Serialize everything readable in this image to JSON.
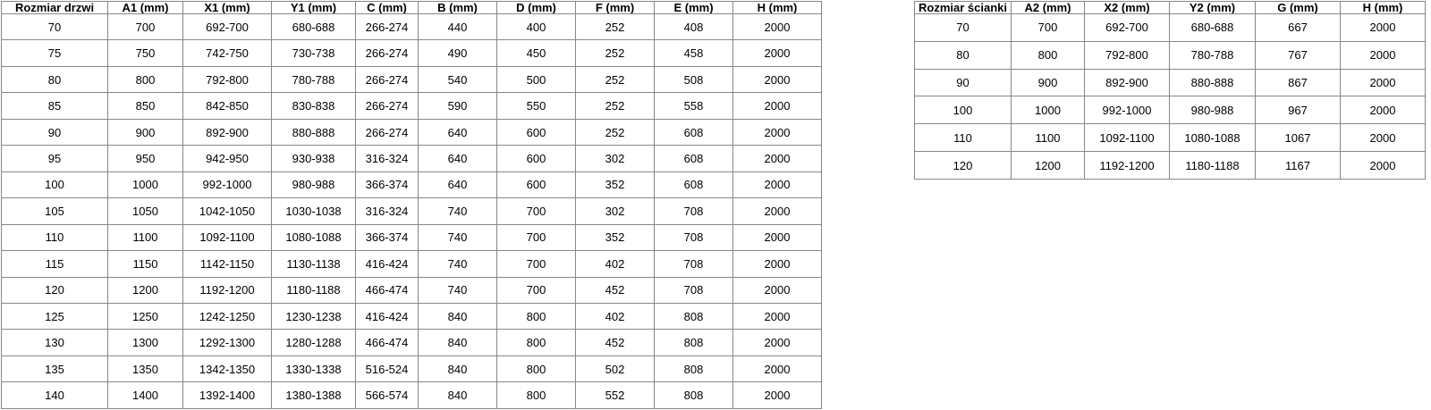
{
  "door_table": {
    "headers": [
      "Rozmiar drzwi",
      "A1 (mm)",
      "X1 (mm)",
      "Y1 (mm)",
      "C (mm)",
      "B (mm)",
      "D (mm)",
      "F (mm)",
      "E (mm)",
      "H (mm)"
    ],
    "rows": [
      [
        "70",
        "700",
        "692-700",
        "680-688",
        "266-274",
        "440",
        "400",
        "252",
        "408",
        "2000"
      ],
      [
        "75",
        "750",
        "742-750",
        "730-738",
        "266-274",
        "490",
        "450",
        "252",
        "458",
        "2000"
      ],
      [
        "80",
        "800",
        "792-800",
        "780-788",
        "266-274",
        "540",
        "500",
        "252",
        "508",
        "2000"
      ],
      [
        "85",
        "850",
        "842-850",
        "830-838",
        "266-274",
        "590",
        "550",
        "252",
        "558",
        "2000"
      ],
      [
        "90",
        "900",
        "892-900",
        "880-888",
        "266-274",
        "640",
        "600",
        "252",
        "608",
        "2000"
      ],
      [
        "95",
        "950",
        "942-950",
        "930-938",
        "316-324",
        "640",
        "600",
        "302",
        "608",
        "2000"
      ],
      [
        "100",
        "1000",
        "992-1000",
        "980-988",
        "366-374",
        "640",
        "600",
        "352",
        "608",
        "2000"
      ],
      [
        "105",
        "1050",
        "1042-1050",
        "1030-1038",
        "316-324",
        "740",
        "700",
        "302",
        "708",
        "2000"
      ],
      [
        "110",
        "1100",
        "1092-1100",
        "1080-1088",
        "366-374",
        "740",
        "700",
        "352",
        "708",
        "2000"
      ],
      [
        "115",
        "1150",
        "1142-1150",
        "1130-1138",
        "416-424",
        "740",
        "700",
        "402",
        "708",
        "2000"
      ],
      [
        "120",
        "1200",
        "1192-1200",
        "1180-1188",
        "466-474",
        "740",
        "700",
        "452",
        "708",
        "2000"
      ],
      [
        "125",
        "1250",
        "1242-1250",
        "1230-1238",
        "416-424",
        "840",
        "800",
        "402",
        "808",
        "2000"
      ],
      [
        "130",
        "1300",
        "1292-1300",
        "1280-1288",
        "466-474",
        "840",
        "800",
        "452",
        "808",
        "2000"
      ],
      [
        "135",
        "1350",
        "1342-1350",
        "1330-1338",
        "516-524",
        "840",
        "800",
        "502",
        "808",
        "2000"
      ],
      [
        "140",
        "1400",
        "1392-1400",
        "1380-1388",
        "566-574",
        "840",
        "800",
        "552",
        "808",
        "2000"
      ]
    ]
  },
  "wall_table": {
    "headers": [
      "Rozmiar ścianki",
      "A2 (mm)",
      "X2 (mm)",
      "Y2 (mm)",
      "G (mm)",
      "H (mm)"
    ],
    "rows": [
      [
        "70",
        "700",
        "692-700",
        "680-688",
        "667",
        "2000"
      ],
      [
        "80",
        "800",
        "792-800",
        "780-788",
        "767",
        "2000"
      ],
      [
        "90",
        "900",
        "892-900",
        "880-888",
        "867",
        "2000"
      ],
      [
        "100",
        "1000",
        "992-1000",
        "980-988",
        "967",
        "2000"
      ],
      [
        "110",
        "1100",
        "1092-1100",
        "1080-1088",
        "1067",
        "2000"
      ],
      [
        "120",
        "1200",
        "1192-1200",
        "1180-1188",
        "1167",
        "2000"
      ]
    ]
  },
  "colors": {
    "border": "#878787",
    "text": "#000000",
    "background": "#ffffff"
  }
}
